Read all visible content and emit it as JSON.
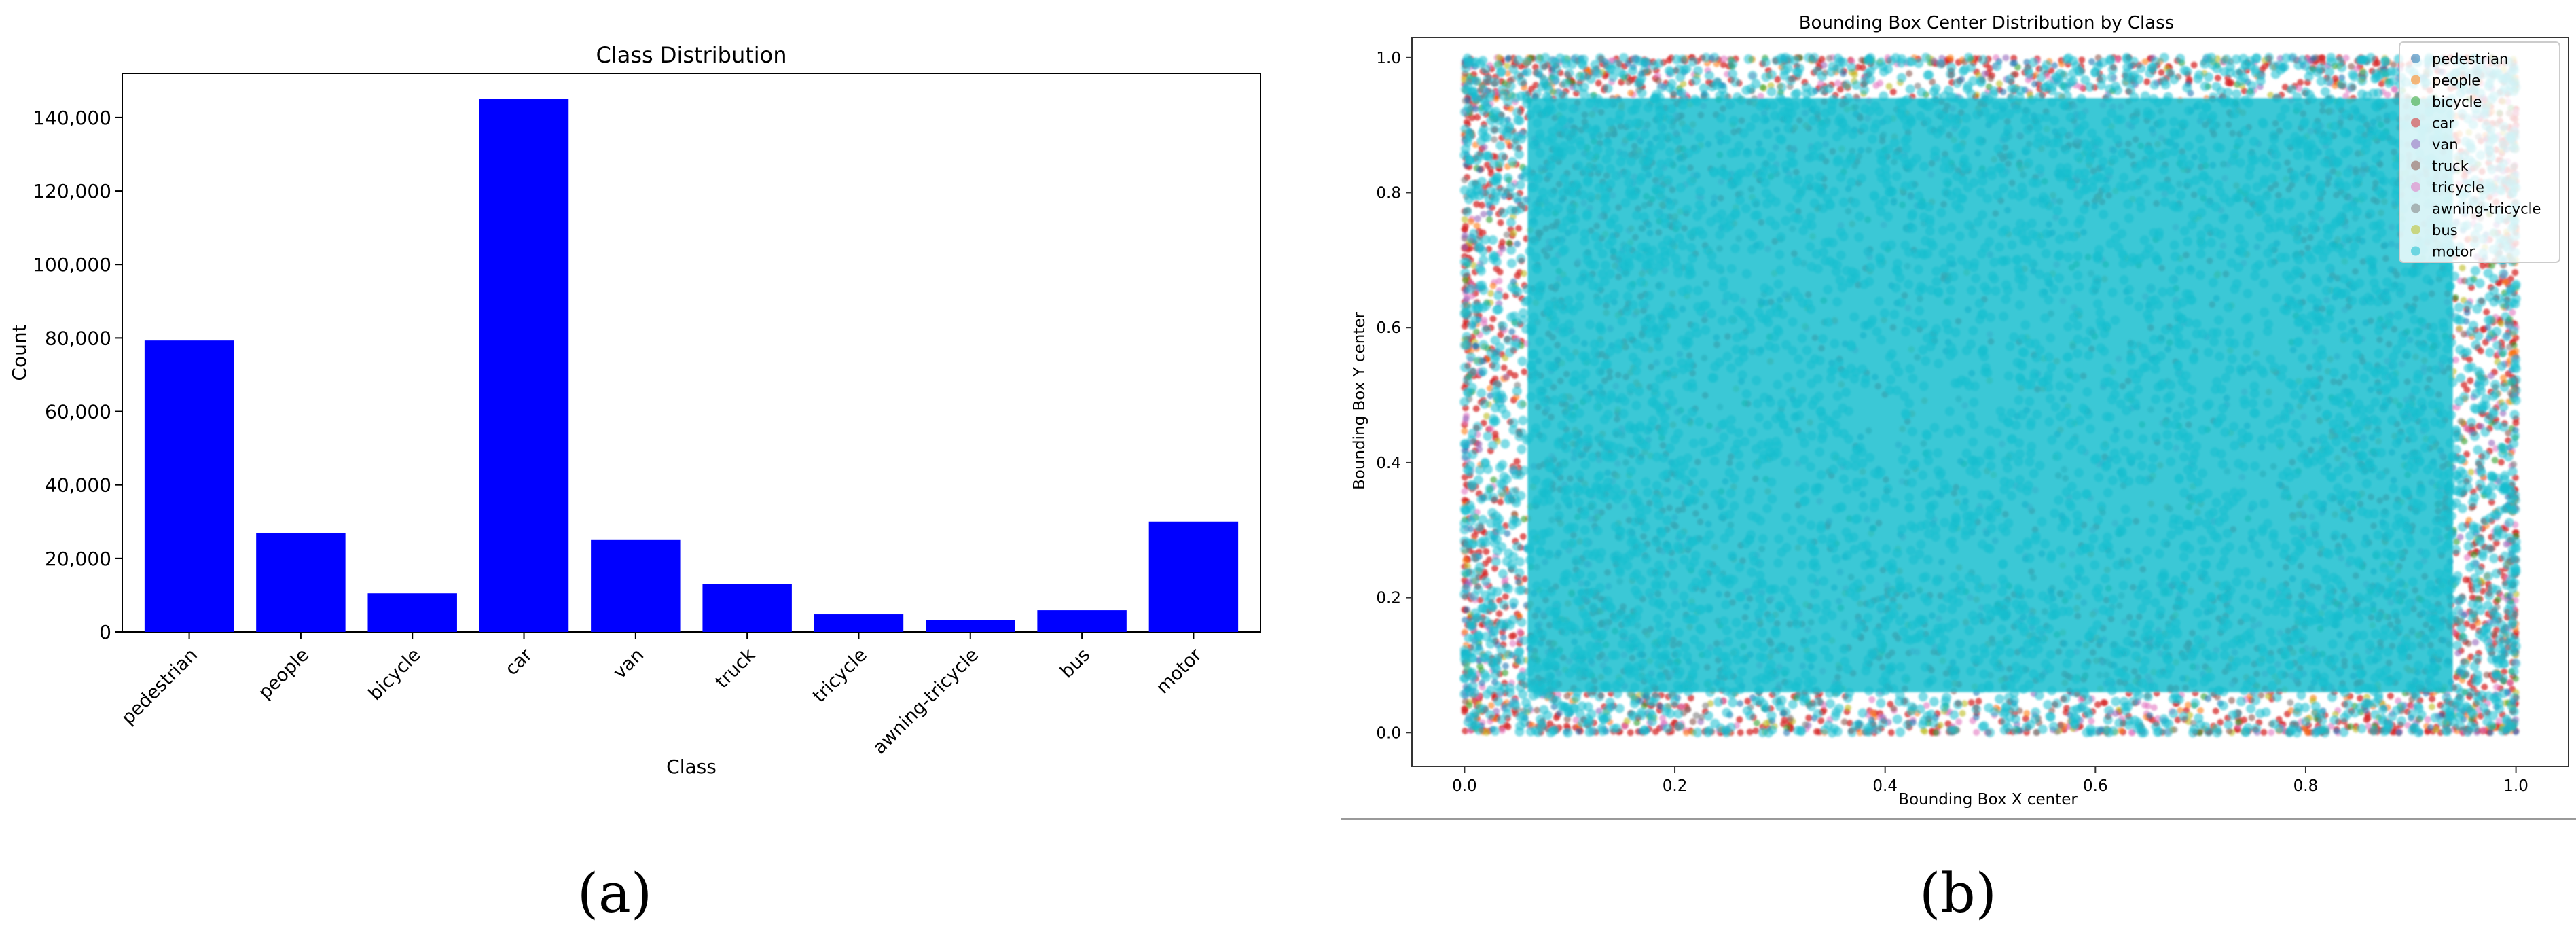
{
  "chart_data": [
    {
      "type": "bar",
      "title": "Class Distribution",
      "xlabel": "Class",
      "ylabel": "Count",
      "categories": [
        "pedestrian",
        "people",
        "bicycle",
        "car",
        "van",
        "truck",
        "tricycle",
        "awning-tricycle",
        "bus",
        "motor"
      ],
      "values": [
        79300,
        27000,
        10500,
        145000,
        25000,
        13000,
        4800,
        3300,
        5900,
        30000
      ],
      "ylim": [
        0,
        152000
      ],
      "yticks": [
        0,
        20000,
        40000,
        60000,
        80000,
        100000,
        120000,
        140000
      ],
      "ytick_labels": [
        "0",
        "20,000",
        "40,000",
        "60,000",
        "80,000",
        "100,000",
        "120,000",
        "140,000"
      ],
      "bar_color": "#0000ff",
      "grid": false
    },
    {
      "type": "scatter",
      "title": "Bounding Box Center Distribution by Class",
      "xlabel": "Bounding Box X center",
      "ylabel": "Bounding Box Y center",
      "xlim": [
        -0.05,
        1.05
      ],
      "ylim": [
        -0.05,
        1.03
      ],
      "xticks": [
        0.0,
        0.2,
        0.4,
        0.6,
        0.8,
        1.0
      ],
      "yticks": [
        0.0,
        0.2,
        0.4,
        0.6,
        0.8,
        1.0
      ],
      "xtick_labels": [
        "0.0",
        "0.2",
        "0.4",
        "0.6",
        "0.8",
        "1.0"
      ],
      "ytick_labels": [
        "0.0",
        "0.2",
        "0.4",
        "0.6",
        "0.8",
        "1.0"
      ],
      "point_range_x": [
        0.0,
        1.0
      ],
      "point_range_y": [
        0.0,
        1.0
      ],
      "legend_position": "top-right",
      "grid": false,
      "series": [
        {
          "name": "pedestrian",
          "color": "#1f77b4"
        },
        {
          "name": "people",
          "color": "#ff7f0e"
        },
        {
          "name": "bicycle",
          "color": "#2ca02c"
        },
        {
          "name": "car",
          "color": "#d62728"
        },
        {
          "name": "van",
          "color": "#9467bd"
        },
        {
          "name": "truck",
          "color": "#8c564b"
        },
        {
          "name": "tricycle",
          "color": "#e377c2"
        },
        {
          "name": "awning-tricycle",
          "color": "#7f7f7f"
        },
        {
          "name": "bus",
          "color": "#bcbd22"
        },
        {
          "name": "motor",
          "color": "#17becf"
        }
      ]
    }
  ],
  "captions": {
    "a": "(a)",
    "b": "(b)"
  }
}
